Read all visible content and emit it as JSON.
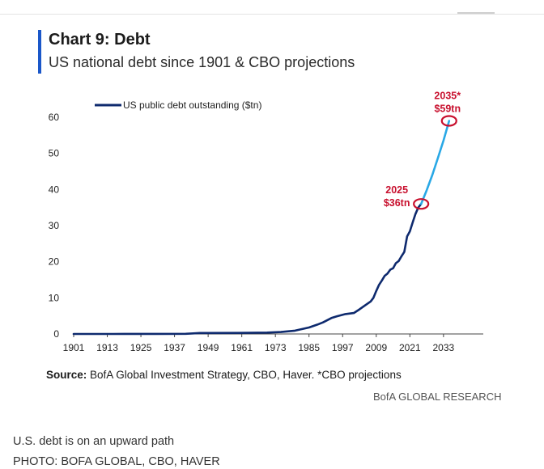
{
  "chart_data": {
    "type": "line",
    "title": "Chart 9: Debt",
    "subtitle": "US national debt since 1901 & CBO projections",
    "xlabel": "",
    "ylabel": "",
    "xlim": [
      1901,
      2042
    ],
    "ylim": [
      0,
      60
    ],
    "x_ticks": [
      1901,
      1913,
      1925,
      1937,
      1949,
      1961,
      1973,
      1985,
      1997,
      2009,
      2021,
      2033
    ],
    "y_ticks": [
      0,
      10,
      20,
      30,
      40,
      50,
      60
    ],
    "legend": [
      "US public debt outstanding ($tn)"
    ],
    "legend_position": "top-left",
    "grid": false,
    "series": [
      {
        "name": "US public debt outstanding ($tn)",
        "color": "#0e2a6e",
        "x": [
          1901,
          1915,
          1919,
          1930,
          1941,
          1943,
          1946,
          1960,
          1970,
          1975,
          1980,
          1985,
          1988,
          1990,
          1993,
          1995,
          1998,
          2001,
          2003,
          2005,
          2007,
          2008,
          2009,
          2010,
          2011,
          2012,
          2013,
          2014,
          2015,
          2016,
          2017,
          2018,
          2019,
          2020,
          2021,
          2022,
          2023,
          2024,
          2025
        ],
        "values": [
          0.0,
          0.0,
          0.03,
          0.02,
          0.05,
          0.14,
          0.27,
          0.29,
          0.38,
          0.54,
          0.91,
          1.8,
          2.6,
          3.2,
          4.4,
          4.9,
          5.5,
          5.8,
          6.8,
          7.9,
          9.0,
          10.0,
          11.9,
          13.6,
          14.8,
          16.1,
          16.7,
          17.8,
          18.2,
          19.6,
          20.2,
          21.5,
          22.7,
          27.0,
          28.4,
          30.9,
          33.2,
          35.0,
          36.0
        ]
      },
      {
        "name": "CBO projection",
        "color": "#29a8e6",
        "x": [
          2025,
          2027,
          2029,
          2031,
          2033,
          2035
        ],
        "values": [
          36.0,
          39.8,
          44.0,
          48.7,
          53.6,
          59.0
        ]
      }
    ],
    "annotations": [
      {
        "year_label": "2025",
        "value_label": "$36tn",
        "x": 2025,
        "y": 36.0
      },
      {
        "year_label": "2035*",
        "value_label": "$59tn",
        "x": 2035,
        "y": 59.0
      }
    ],
    "annotation_color": "#c8102e"
  },
  "source": {
    "label": "Source:",
    "text": "BofA Global Investment Strategy, CBO, Haver. *CBO projections"
  },
  "brand": "BofA GLOBAL RESEARCH",
  "caption": "U.S. debt is on an upward path",
  "credit": "PHOTO: BOFA GLOBAL, CBO, HAVER",
  "colors": {
    "accent_bar": "#1a57c9"
  }
}
